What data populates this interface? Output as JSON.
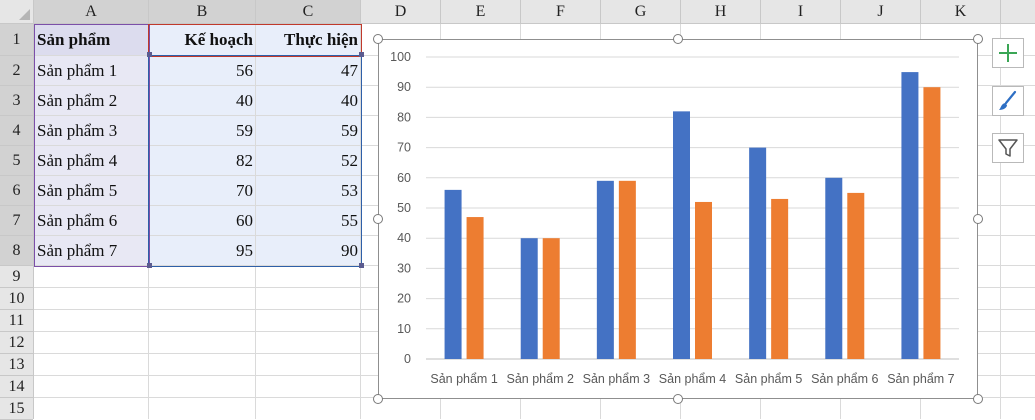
{
  "columns": [
    "A",
    "B",
    "C",
    "D",
    "E",
    "F",
    "G",
    "H",
    "I",
    "J",
    "K"
  ],
  "rows": [
    "1",
    "2",
    "3",
    "4",
    "5",
    "6",
    "7",
    "8",
    "9",
    "10",
    "11",
    "12",
    "13",
    "14",
    "15"
  ],
  "table": {
    "headers": [
      "Sản phẩm",
      "Kế hoạch",
      "Thực hiện"
    ],
    "rows": [
      [
        "Sản phẩm 1",
        "56",
        "47"
      ],
      [
        "Sản phẩm 2",
        "40",
        "40"
      ],
      [
        "Sản phẩm 3",
        "59",
        "59"
      ],
      [
        "Sản phẩm 4",
        "82",
        "52"
      ],
      [
        "Sản phẩm 5",
        "70",
        "53"
      ],
      [
        "Sản phẩm 6",
        "60",
        "55"
      ],
      [
        "Sản phẩm 7",
        "95",
        "90"
      ]
    ]
  },
  "chart_data": {
    "type": "bar",
    "categories": [
      "Sản phẩm 1",
      "Sản phẩm 2",
      "Sản phẩm 3",
      "Sản phẩm 4",
      "Sản phẩm 5",
      "Sản phẩm 6",
      "Sản phẩm 7"
    ],
    "series": [
      {
        "values": [
          56,
          40,
          59,
          82,
          70,
          60,
          95
        ],
        "color": "#4472c4"
      },
      {
        "values": [
          47,
          40,
          59,
          52,
          53,
          55,
          90
        ],
        "color": "#ed7d31"
      }
    ],
    "ylim": [
      0,
      100
    ],
    "yticks": [
      "0",
      "10",
      "20",
      "30",
      "40",
      "50",
      "60",
      "70",
      "80",
      "90",
      "100"
    ],
    "grid": true,
    "legend": "none"
  },
  "side_buttons": [
    {
      "icon": "plus-icon",
      "color": "#3aa655"
    },
    {
      "icon": "brush-icon",
      "color": "#2e6fc4"
    },
    {
      "icon": "filter-icon",
      "color": "#555555"
    }
  ]
}
